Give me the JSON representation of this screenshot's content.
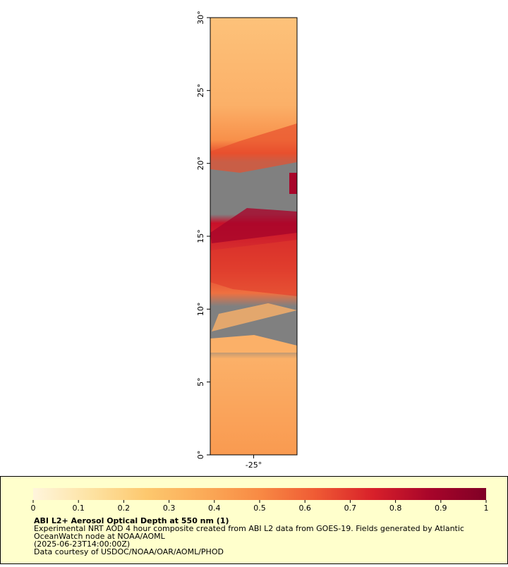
{
  "map": {
    "lat_range": [
      0,
      30
    ],
    "lat_ticks": [
      {
        "value": 0,
        "label": "0°"
      },
      {
        "value": 5,
        "label": "5°"
      },
      {
        "value": 10,
        "label": "10°"
      },
      {
        "value": 15,
        "label": "15°"
      },
      {
        "value": 20,
        "label": "20°"
      },
      {
        "value": 25,
        "label": "25°"
      },
      {
        "value": 30,
        "label": "30°"
      }
    ],
    "lon_range": [
      -27.9,
      -22.1
    ],
    "lon_ticks": [
      {
        "value": -25,
        "label": "-25°"
      }
    ]
  },
  "legend": {
    "range": [
      0,
      1
    ],
    "ticks": [
      0,
      0.1,
      0.2,
      0.3,
      0.4,
      0.5,
      0.6,
      0.7,
      0.8,
      0.9,
      1
    ],
    "colors": [
      "#fff5dc",
      "#fde3a4",
      "#fdc86e",
      "#fbab58",
      "#f88a44",
      "#ef5a34",
      "#d8202a",
      "#a8052a",
      "#800026"
    ],
    "title": "ABI L2+ Aerosol Optical Depth at 550 nm (1)",
    "lines": [
      "Experimental NRT AOD 4 hour composite created from ABI L2 data from GOES-19. Fields generated by Atlantic",
      "OceanWatch node at NOAA/AOML",
      "(2025-06-23T14:00:00Z)",
      "Data courtesy of USDOC/NOAA/OAR/AOML/PHOD"
    ]
  }
}
